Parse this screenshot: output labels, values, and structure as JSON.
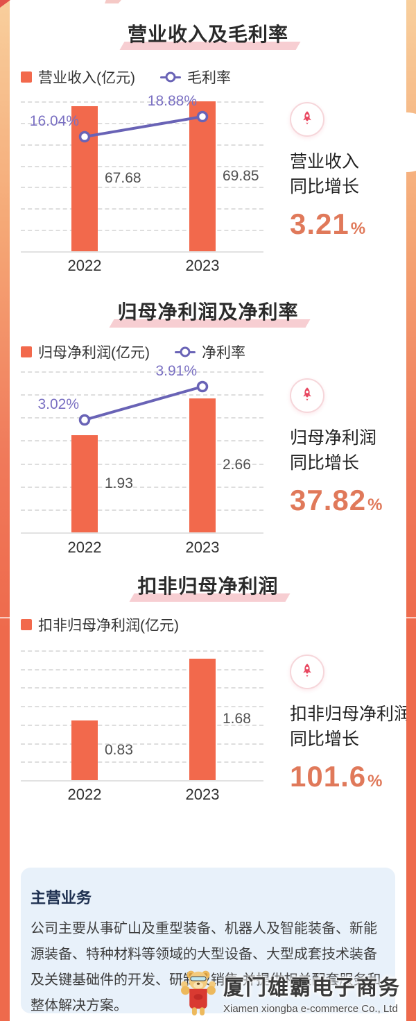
{
  "colors": {
    "bar": "#F2694C",
    "line": "#6963B6",
    "pct_label": "#7A70C2",
    "accent_number": "#E0795A",
    "rocket": "#E84760",
    "title_highlight": "#F7CED2",
    "info_box_bg": "#E8F1FA"
  },
  "sections": [
    {
      "title": "营业收入及毛利率",
      "legend_bar": "营业收入(亿元)",
      "legend_line": "毛利率",
      "stat": {
        "line1": "营业收入",
        "line2": "同比增长",
        "value": "3.21",
        "unit": "%"
      }
    },
    {
      "title": "归母净利润及净利率",
      "legend_bar": "归母净利润(亿元)",
      "legend_line": "净利率",
      "stat": {
        "line1": "归母净利润",
        "line2": "同比增长",
        "value": "37.82",
        "unit": "%"
      }
    },
    {
      "title": "扣非归母净利润",
      "legend_bar": "扣非归母净利润(亿元)",
      "stat": {
        "line1": "扣非归母净利润",
        "line2": "同比增长",
        "value": "101.6",
        "unit": "%"
      }
    }
  ],
  "chart_data": [
    {
      "type": "bar",
      "title": "营业收入及毛利率",
      "categories": [
        "2022",
        "2023"
      ],
      "series": [
        {
          "name": "营业收入(亿元)",
          "type": "bar",
          "values": [
            67.68,
            69.85
          ]
        },
        {
          "name": "毛利率",
          "type": "line",
          "values": [
            16.04,
            18.88
          ],
          "unit": "%"
        }
      ],
      "bar_labels": [
        "67.68",
        "69.85"
      ],
      "line_labels": [
        "16.04%",
        "18.88%"
      ],
      "ylabel": "亿元",
      "ylim": [
        0,
        70
      ],
      "line_ylim": [
        0,
        21
      ],
      "grid": "dashed-horizontal",
      "legend_position": "top-left"
    },
    {
      "type": "bar",
      "title": "归母净利润及净利率",
      "categories": [
        "2022",
        "2023"
      ],
      "series": [
        {
          "name": "归母净利润(亿元)",
          "type": "bar",
          "values": [
            1.93,
            2.66
          ]
        },
        {
          "name": "净利率",
          "type": "line",
          "values": [
            3.02,
            3.91
          ],
          "unit": "%"
        }
      ],
      "bar_labels": [
        "1.93",
        "2.66"
      ],
      "line_labels": [
        "3.02%",
        "3.91%"
      ],
      "ylabel": "亿元",
      "ylim": [
        0,
        3.2
      ],
      "line_ylim": [
        0,
        4.32
      ],
      "grid": "dashed-horizontal",
      "legend_position": "top-left"
    },
    {
      "type": "bar",
      "title": "扣非归母净利润",
      "categories": [
        "2022",
        "2023"
      ],
      "series": [
        {
          "name": "扣非归母净利润(亿元)",
          "type": "bar",
          "values": [
            0.83,
            1.68
          ]
        }
      ],
      "bar_labels": [
        "0.83",
        "1.68"
      ],
      "ylabel": "亿元",
      "ylim": [
        0,
        1.8
      ],
      "grid": "dashed-horizontal",
      "legend_position": "top-left"
    }
  ],
  "info_box": {
    "title": "主营业务",
    "body": "公司主要从事矿山及重型装备、机器人及智能装备、新能源装备、特种材料等领域的大型设备、大型成套技术装备及关键基础件的开发、研制及销售.并提供相关配套服务和整体解决方案。"
  },
  "watermark": {
    "company_cn": "厦门雄霸电子商务",
    "company_en": "Xiamen xiongba e-commerce Co., Ltd"
  }
}
